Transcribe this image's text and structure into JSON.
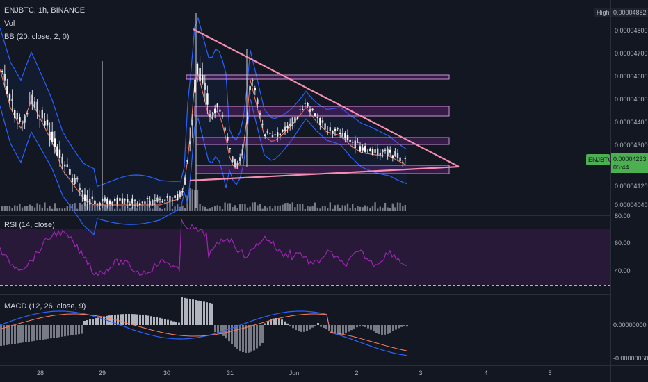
{
  "header": {
    "symbol_line": "ENJBTC, 1h, BINANCE",
    "volume_label": "Vol",
    "bb_label": "BB (20, close, 2, 0)"
  },
  "price_axis": {
    "high_tag": "High",
    "high_value": "0.00004882",
    "ticks": [
      "0.00004800",
      "0.00004700",
      "0.00004600",
      "0.00004500",
      "0.00004400",
      "0.00004300",
      "0.00004120",
      "0.00004040"
    ],
    "last_symbol": "ENJBTC",
    "last_value": "0.00004233",
    "countdown": "05:44"
  },
  "rsi": {
    "label": "RSI (14, close)",
    "ticks": [
      "80.00",
      "60.00",
      "40.00"
    ],
    "upper": 70,
    "lower": 30
  },
  "macd": {
    "label": "MACD (12, 26, close, 9)",
    "ticks": [
      "0.00000000",
      "-0.00000050"
    ]
  },
  "time_axis": {
    "ticks": [
      "28",
      "29",
      "30",
      "31",
      "Jun",
      "2",
      "3",
      "4",
      "5"
    ]
  },
  "colors": {
    "background": "#131722",
    "bull": "#d1d4dc",
    "bear": "#ffffff",
    "bb_band": "#2962ff",
    "bb_basis": "#ff7e5f",
    "trendline": "#f48fb1",
    "zone": "#9c27b0",
    "rsi_line": "#9c27b0",
    "last_price": "#4caf50"
  },
  "chart_data": {
    "type": "candlestick",
    "x_start": "2021-05-27 00:00",
    "interval": "1h",
    "price_range": [
      4e-05,
      4.9e-05
    ],
    "candles": [],
    "zones": [
      {
        "from": 4.59e-05,
        "to": 4.61e-05
      },
      {
        "from": 4.45e-05,
        "to": 4.49e-05
      },
      {
        "from": 4.3e-05,
        "to": 4.33e-05
      },
      {
        "from": 4.16e-05,
        "to": 4.2e-05
      }
    ],
    "rsi_levels": [
      70,
      30
    ],
    "macd_zero": 0
  }
}
